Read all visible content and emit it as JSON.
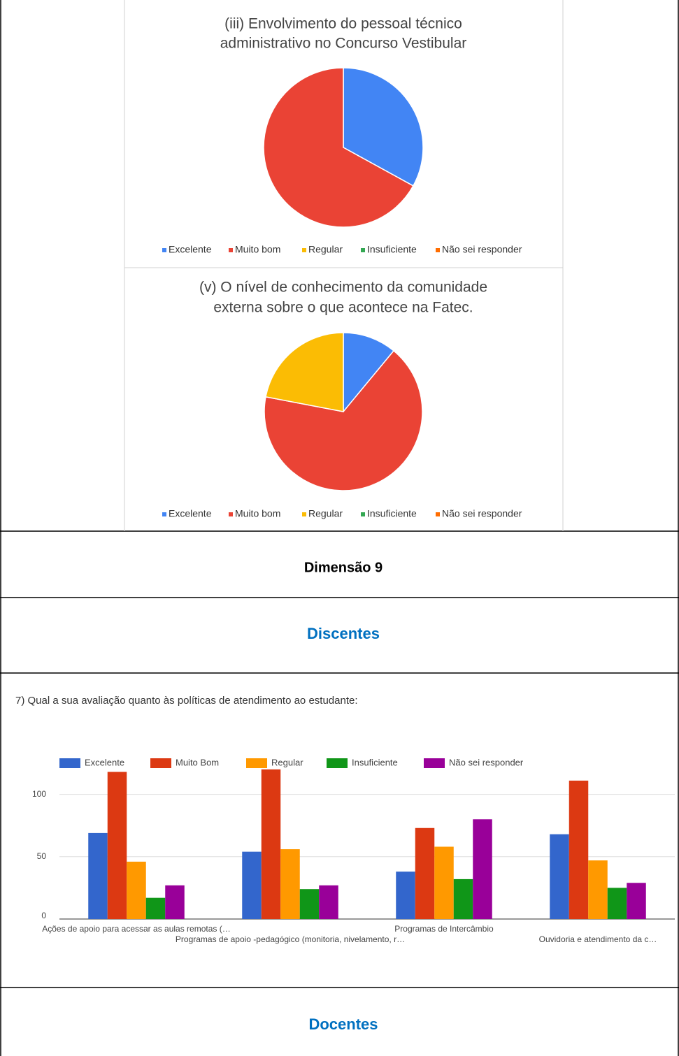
{
  "chart_data": [
    {
      "type": "pie",
      "title": [
        "(iii) Envolvimento do pessoal técnico",
        "administrativo no Concurso Vestibular"
      ],
      "categories": [
        "Excelente",
        "Muito bom",
        "Regular",
        "Insuficiente",
        "Não sei responder"
      ],
      "values": [
        33,
        67,
        0,
        0,
        0
      ],
      "colors": [
        "#4285f4",
        "#ea4335",
        "#fbbc04",
        "#34a853",
        "#ff6d01"
      ]
    },
    {
      "type": "pie",
      "title": [
        "(v) O nível de conhecimento da comunidade",
        "externa sobre o que acontece na Fatec."
      ],
      "categories": [
        "Excelente",
        "Muito bom",
        "Regular",
        "Insuficiente",
        "Não sei responder"
      ],
      "values": [
        11,
        67,
        22,
        0,
        0
      ],
      "colors": [
        "#4285f4",
        "#ea4335",
        "#fbbc04",
        "#34a853",
        "#ff6d01"
      ]
    },
    {
      "type": "bar",
      "title": "7) Qual a sua avaliação quanto às políticas de atendimento ao estudante:",
      "categories": [
        "Ações de apoio para acessar as aulas remotas (…",
        "Programas de apoio -pedagógico (monitoria, nivelamento, r…",
        "Programas de Intercâmbio",
        "Ouvidoria e atendimento da c…"
      ],
      "series": [
        {
          "name": "Excelente",
          "color": "#3366cc",
          "values": [
            69,
            54,
            38,
            68
          ]
        },
        {
          "name": "Muito Bom",
          "color": "#dc3912",
          "values": [
            118,
            120,
            73,
            111
          ]
        },
        {
          "name": "Regular",
          "color": "#ff9900",
          "values": [
            46,
            56,
            58,
            47
          ]
        },
        {
          "name": "Insuficiente",
          "color": "#109618",
          "values": [
            17,
            24,
            32,
            25
          ]
        },
        {
          "name": "Não sei responder",
          "color": "#990099",
          "values": [
            27,
            27,
            80,
            29
          ]
        }
      ],
      "ylim": [
        0,
        125
      ],
      "yticks": [
        0,
        50,
        100
      ],
      "grid": true
    }
  ],
  "headings": [
    "Dimensão 9",
    "Discentes",
    "Docentes"
  ]
}
